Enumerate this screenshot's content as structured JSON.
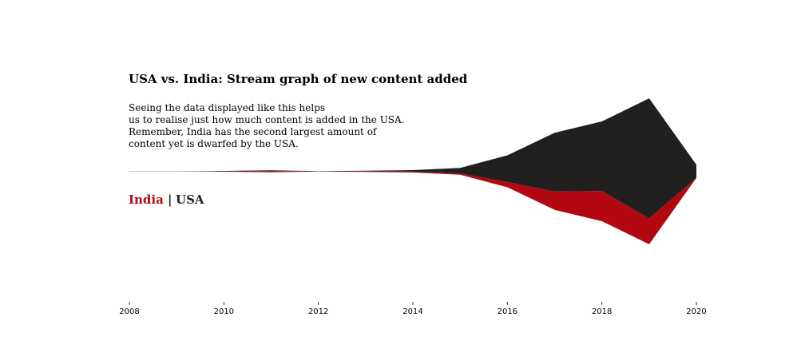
{
  "chart_data": {
    "type": "area",
    "title": "USA vs. India: Stream graph of new content added",
    "subtitle_lines": [
      "Seeing the data displayed like this helps",
      "us to realise just how much content is added in the USA.",
      "Remember, India has the second largest amount of",
      "content yet is dwarfed by the USA."
    ],
    "legend": {
      "items": [
        {
          "name": "India",
          "color": "#b20710"
        },
        {
          "name": "USA",
          "color": "#221f1f"
        }
      ],
      "separator": "|"
    },
    "x": [
      2008,
      2009,
      2010,
      2011,
      2012,
      2013,
      2014,
      2015,
      2016,
      2017,
      2018,
      2019,
      2020
    ],
    "xticks": [
      "2008",
      "2010",
      "2012",
      "2014",
      "2016",
      "2018",
      "2020"
    ],
    "xlim": [
      2008,
      2020
    ],
    "ylim": [
      -545,
      545
    ],
    "baseline": "symmetric",
    "grid": false,
    "series": [
      {
        "name": "India",
        "color": "#b20710",
        "values": [
          0,
          0,
          1,
          9,
          1,
          5,
          6,
          9,
          36,
          125,
          207,
          177,
          0
        ]
      },
      {
        "name": "USA",
        "color": "#221f1f",
        "values": [
          1,
          1,
          4,
          5,
          2,
          3,
          10,
          38,
          183,
          403,
          477,
          824,
          91
        ]
      }
    ]
  }
}
